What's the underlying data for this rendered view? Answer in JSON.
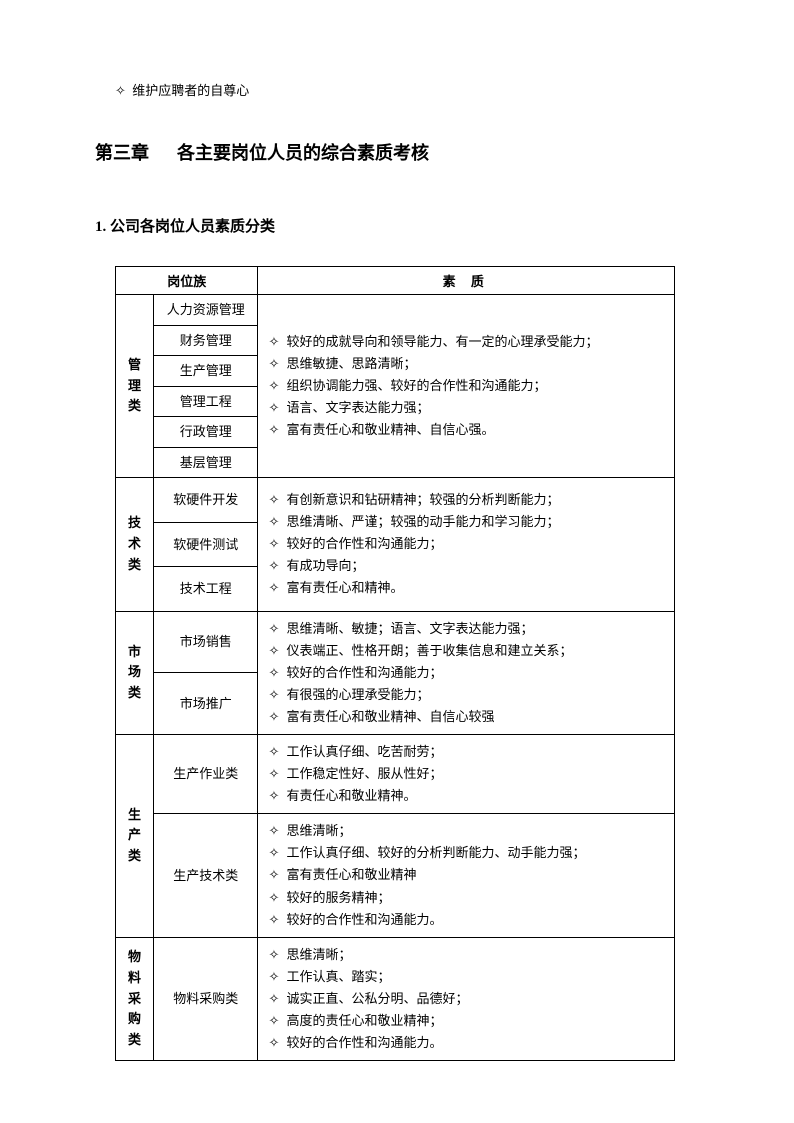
{
  "top_bullet": "维护应聘者的自尊心",
  "chapter_label": "第三章",
  "chapter_title": "各主要岗位人员的综合素质考核",
  "section_title": "1. 公司各岗位人员素质分类",
  "header": {
    "col1": "岗位族",
    "col2": "素 质"
  },
  "groups": [
    {
      "cat": "管理类",
      "subs": [
        "人力资源管理",
        "财务管理",
        "生产管理",
        "管理工程",
        "行政管理",
        "基层管理"
      ],
      "qual": [
        "较好的成就导向和领导能力、有一定的心理承受能力；",
        "思维敏捷、思路清晰；",
        "组织协调能力强、较好的合作性和沟通能力；",
        "语言、文字表达能力强；",
        "富有责任心和敬业精神、自信心强。"
      ]
    },
    {
      "cat": "技术类",
      "subs": [
        "软硬件开发",
        "软硬件测试",
        "技术工程"
      ],
      "qual": [
        "有创新意识和钻研精神；较强的分析判断能力；",
        "思维清晰、严谨；较强的动手能力和学习能力；",
        "较好的合作性和沟通能力；",
        "有成功导向；",
        "富有责任心和精神。"
      ]
    },
    {
      "cat": "市场类",
      "subs": [
        "市场销售",
        "市场推广"
      ],
      "qual": [
        "思维清晰、敏捷；语言、文字表达能力强；",
        "仪表端正、性格开朗；善于收集信息和建立关系；",
        "较好的合作性和沟通能力；",
        "有很强的心理承受能力；",
        "富有责任心和敬业精神、自信心较强"
      ]
    },
    {
      "cat": "生产类",
      "subblocks": [
        {
          "sub": "生产作业类",
          "qual": [
            "工作认真仔细、吃苦耐劳；",
            "工作稳定性好、服从性好；",
            "有责任心和敬业精神。"
          ]
        },
        {
          "sub": "生产技术类",
          "qual": [
            "思维清晰；",
            "工作认真仔细、较好的分析判断能力、动手能力强；",
            "富有责任心和敬业精神",
            "较好的服务精神；",
            "较好的合作性和沟通能力。"
          ]
        }
      ]
    },
    {
      "cat": "物料采购类",
      "subs": [
        "物料采购类"
      ],
      "qual": [
        "思维清晰；",
        "工作认真、踏实；",
        "诚实正直、公私分明、品德好；",
        "高度的责任心和敬业精神；",
        "较好的合作性和沟通能力。"
      ]
    }
  ]
}
